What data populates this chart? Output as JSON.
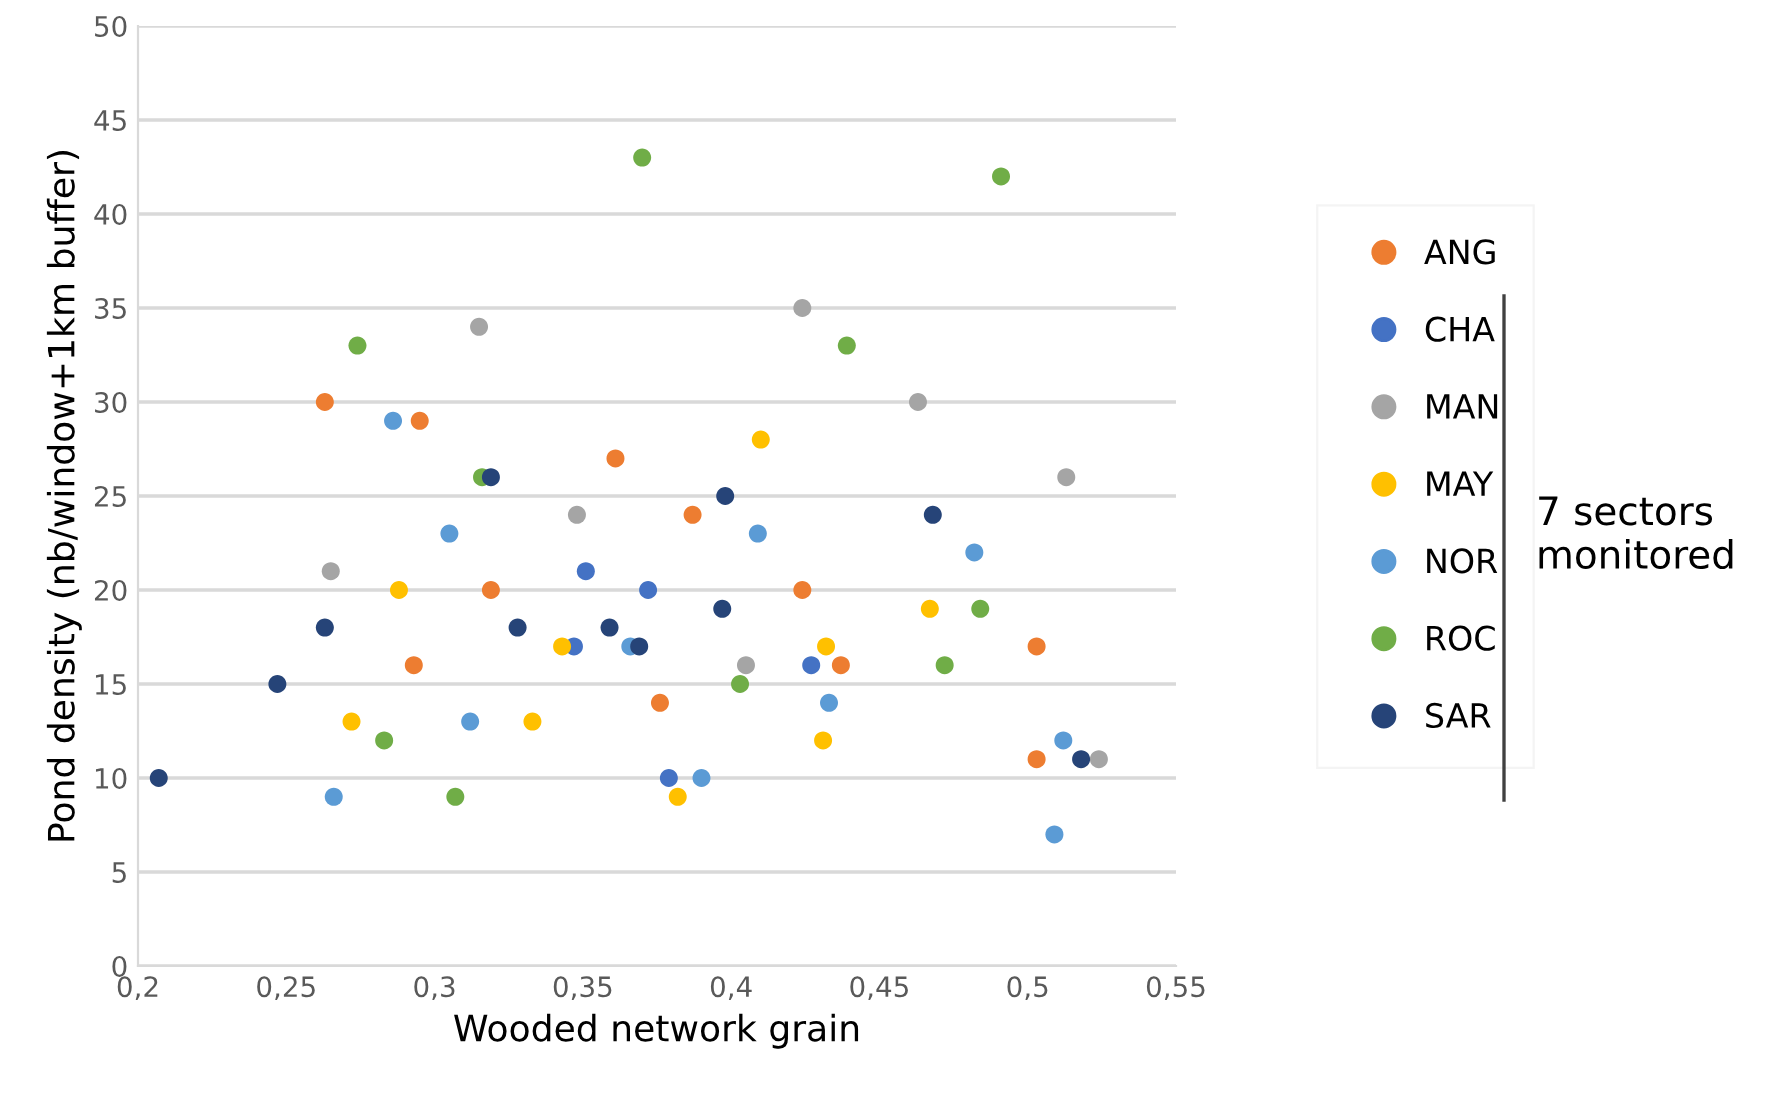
{
  "chart_data": {
    "type": "scatter",
    "xlabel": "Wooded network grain",
    "ylabel": "Pond density (nb/window+1km buffer)",
    "xlim": [
      0.2,
      0.55
    ],
    "ylim": [
      0,
      50
    ],
    "xticks": [
      {
        "value": 0.2,
        "label": "0,2"
      },
      {
        "value": 0.25,
        "label": "0,25"
      },
      {
        "value": 0.3,
        "label": "0,3"
      },
      {
        "value": 0.35,
        "label": "0,35"
      },
      {
        "value": 0.4,
        "label": "0,4"
      },
      {
        "value": 0.45,
        "label": "0,45"
      },
      {
        "value": 0.5,
        "label": "0,5"
      },
      {
        "value": 0.55,
        "label": "0,55"
      }
    ],
    "yticks": [
      0,
      5,
      10,
      15,
      20,
      25,
      30,
      35,
      40,
      45,
      50
    ],
    "grid": "y",
    "legend": "right",
    "marker": "circle",
    "annotations": [
      "7 sectors\nmonitored"
    ],
    "series": [
      {
        "name": "ANG",
        "color": "#ed7d31",
        "x": [
          0.263,
          0.295,
          0.361,
          0.319,
          0.293,
          0.387,
          0.424,
          0.503,
          0.437,
          0.376,
          0.503
        ],
        "values": [
          30,
          29,
          27,
          20,
          16,
          24,
          20,
          17,
          16,
          14,
          11
        ]
      },
      {
        "name": "CHA",
        "color": "#4472c4",
        "x": [
          0.351,
          0.347,
          0.372,
          0.427,
          0.379
        ],
        "values": [
          21,
          17,
          20,
          16,
          10
        ]
      },
      {
        "name": "MAN",
        "color": "#a5a5a5",
        "x": [
          0.315,
          0.348,
          0.265,
          0.424,
          0.463,
          0.513,
          0.405,
          0.524
        ],
        "values": [
          34,
          24,
          21,
          35,
          30,
          26,
          16,
          11
        ]
      },
      {
        "name": "MAY",
        "color": "#ffc000",
        "x": [
          0.288,
          0.343,
          0.272,
          0.333,
          0.41,
          0.467,
          0.432,
          0.431,
          0.382
        ],
        "values": [
          20,
          17,
          13,
          13,
          28,
          19,
          17,
          12,
          9
        ]
      },
      {
        "name": "NOR",
        "color": "#5b9bd5",
        "x": [
          0.286,
          0.305,
          0.366,
          0.312,
          0.266,
          0.409,
          0.482,
          0.433,
          0.512,
          0.39,
          0.509
        ],
        "values": [
          29,
          23,
          17,
          13,
          9,
          23,
          22,
          14,
          12,
          10,
          7
        ]
      },
      {
        "name": "ROC",
        "color": "#70ad47",
        "x": [
          0.37,
          0.274,
          0.316,
          0.283,
          0.307,
          0.491,
          0.439,
          0.484,
          0.472,
          0.403
        ],
        "values": [
          43,
          33,
          26,
          12,
          9,
          42,
          33,
          19,
          16,
          15
        ]
      },
      {
        "name": "SAR",
        "color": "#264478",
        "x": [
          0.319,
          0.263,
          0.328,
          0.359,
          0.369,
          0.247,
          0.207,
          0.398,
          0.468,
          0.397,
          0.518
        ],
        "values": [
          26,
          18,
          18,
          18,
          17,
          15,
          10,
          25,
          24,
          19,
          11
        ]
      }
    ]
  }
}
